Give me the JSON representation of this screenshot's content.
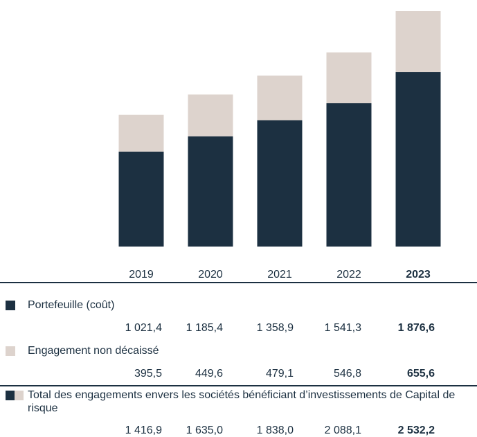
{
  "colors": {
    "portefeuille": "#1c3041",
    "engagement": "#ddd3cd",
    "text": "#1c3041"
  },
  "chart_data": {
    "type": "bar",
    "stacked": true,
    "categories": [
      "2019",
      "2020",
      "2021",
      "2022",
      "2023"
    ],
    "highlight_category": "2023",
    "series": [
      {
        "name": "Portefeuille (coût)",
        "values": [
          1021.4,
          1185.4,
          1358.9,
          1541.3,
          1876.6
        ],
        "display": [
          "1 021,4",
          "1 185,4",
          "1 358,9",
          "1 541,3",
          "1 876,6"
        ]
      },
      {
        "name": "Engagement non décaissé",
        "values": [
          395.5,
          449.6,
          479.1,
          546.8,
          655.6
        ],
        "display": [
          "395,5",
          "449,6",
          "479,1",
          "546,8",
          "655,6"
        ]
      }
    ],
    "total": {
      "name": "Total des engagements envers les sociétés bénéficiant d’investissements de Capital de risque",
      "values": [
        1416.9,
        1635.0,
        1838.0,
        2088.1,
        2532.2
      ],
      "display": [
        "1 416,9",
        "1 635,0",
        "1 838,0",
        "2 088,1",
        "2 532,2"
      ]
    },
    "title": "",
    "xlabel": "",
    "ylabel": "",
    "ylim": [
      0,
      2532.2
    ],
    "grid": false
  }
}
